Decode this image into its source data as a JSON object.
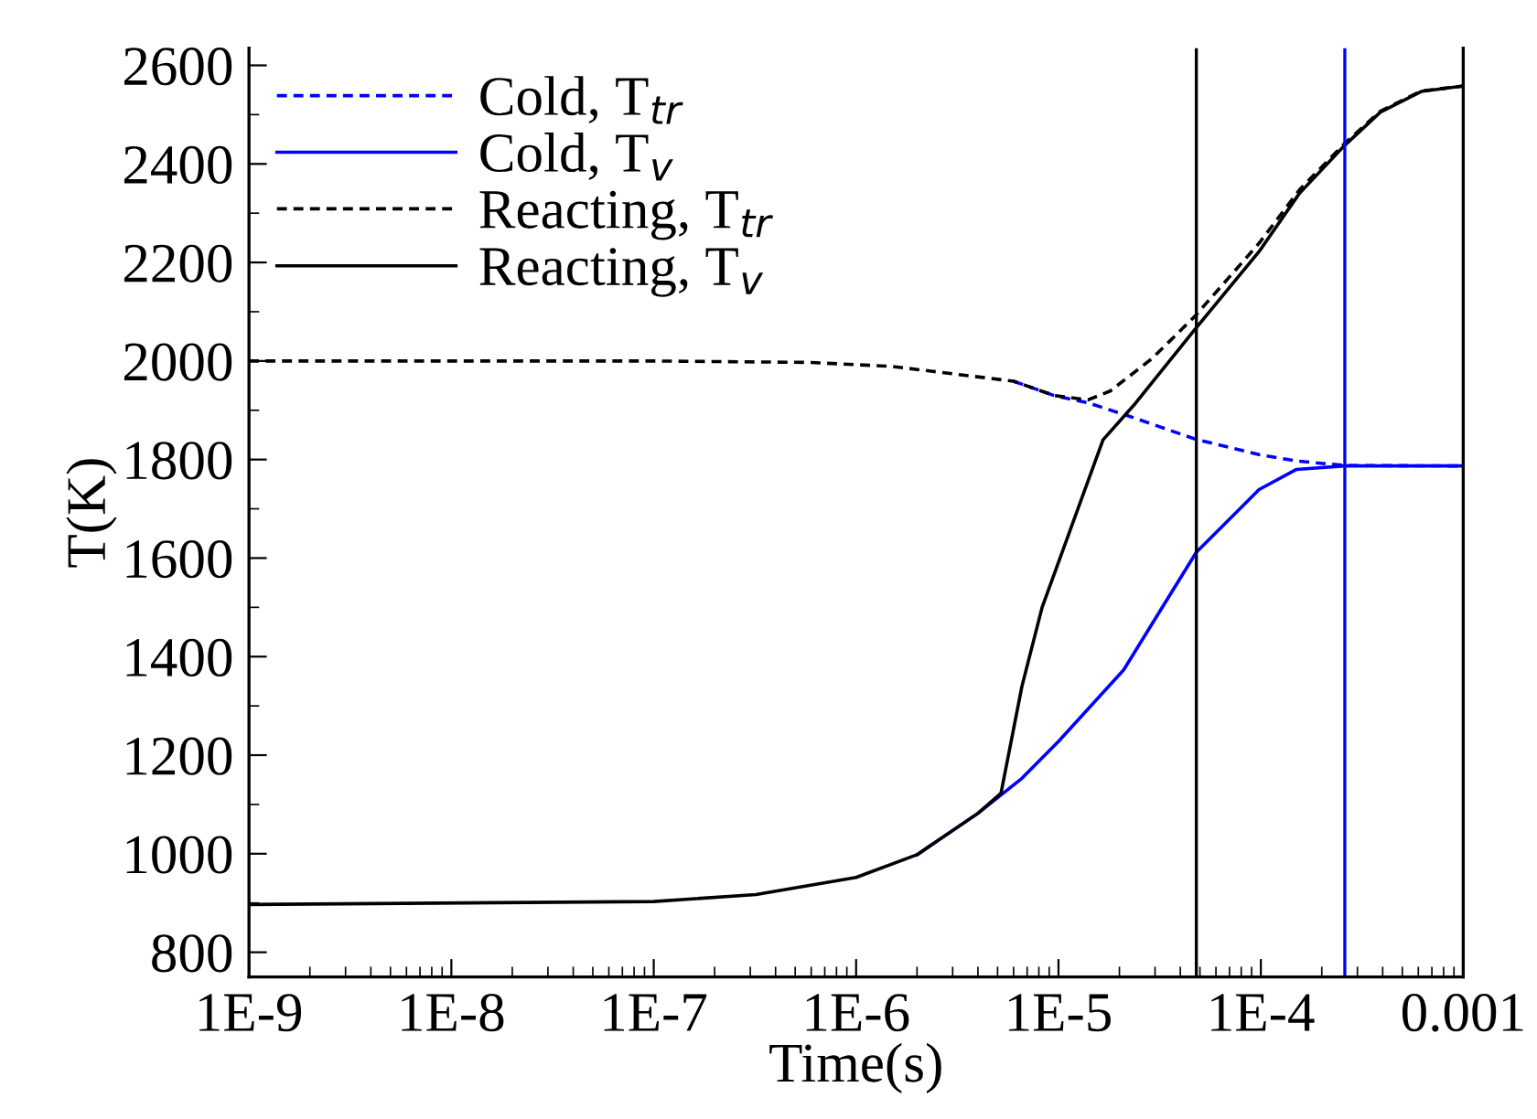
{
  "chart_data": {
    "type": "line",
    "xlabel": "Time(s)",
    "ylabel": "T(K)",
    "log": "x",
    "xlim": [
      1e-09,
      0.001
    ],
    "xticks": [
      {
        "value": 1e-09,
        "label": "1E-9"
      },
      {
        "value": 1e-08,
        "label": "1E-8"
      },
      {
        "value": 1e-07,
        "label": "1E-7"
      },
      {
        "value": 1e-06,
        "label": "1E-6"
      },
      {
        "value": 1e-05,
        "label": "1E-5"
      },
      {
        "value": 0.0001,
        "label": "1E-4"
      },
      0.001
    ],
    "ylim": [
      750,
      2635
    ],
    "yticks": [
      800,
      1000,
      1200,
      1400,
      1600,
      1800,
      2000,
      2200,
      2400,
      2600
    ],
    "grid": false,
    "legend": "top left",
    "series": [
      {
        "name": "Cold, T$_{tr}$",
        "color": "#0000ff",
        "line_style": "dashed",
        "x": [
          6e-06,
          9.5e-06,
          1.4e-05,
          2.2e-05,
          4.7e-05,
          9.8e-05,
          0.00015,
          0.00026,
          0.001
        ],
        "values": [
          1959,
          1930,
          1915,
          1889,
          1842,
          1810,
          1797,
          1788,
          1787
        ]
      },
      {
        "name": "Cold, T$_{v}$",
        "color": "#0000ff",
        "line_style": "solid",
        "x": [
          2e-06,
          4e-06,
          6.6e-06,
          1e-05,
          2.1e-05,
          4.8e-05,
          9.8e-05,
          0.00015,
          0.00026,
          0.001
        ],
        "values": [
          998,
          1082,
          1153,
          1228,
          1373,
          1612,
          1739,
          1780,
          1787,
          1787
        ]
      },
      {
        "name": "Reacting, T$_{tr}$",
        "color": "#000000",
        "line_style": "dashed",
        "x": [
          1e-09,
          1e-07,
          6e-07,
          1.5e-06,
          6e-06,
          9.5e-06,
          1.4e-05,
          1.8e-05,
          2.9e-05,
          4.7e-05,
          9.8e-05,
          0.000155,
          0.00026,
          0.00039,
          0.00062,
          0.001
        ],
        "values": [
          2000,
          2000,
          1997,
          1989,
          1959,
          1930,
          1921,
          1939,
          2005,
          2090,
          2239,
          2347,
          2442,
          2507,
          2548,
          2558
        ]
      },
      {
        "name": "Reacting, T$_{v}$",
        "color": "#000000",
        "line_style": "solid",
        "x": [
          1e-09,
          1e-07,
          3.2e-07,
          1e-06,
          2e-06,
          4e-06,
          5.2e-06,
          6.6e-06,
          8.3e-06,
          1.15e-05,
          1.66e-05,
          2.4e-05,
          4.7e-05,
          9.8e-05,
          0.000155,
          0.00026,
          0.00039,
          0.00062,
          0.001
        ],
        "values": [
          897,
          903,
          917,
          952,
          998,
          1082,
          1123,
          1340,
          1500,
          1660,
          1840,
          1914,
          2063,
          2222,
          2340,
          2438,
          2505,
          2547,
          2558
        ]
      }
    ],
    "ref_lines": [
      {
        "axis": "x",
        "value": 4.8e-05,
        "color": "#000000"
      },
      {
        "axis": "x",
        "value": 0.00026,
        "color": "#0000ff"
      }
    ]
  }
}
